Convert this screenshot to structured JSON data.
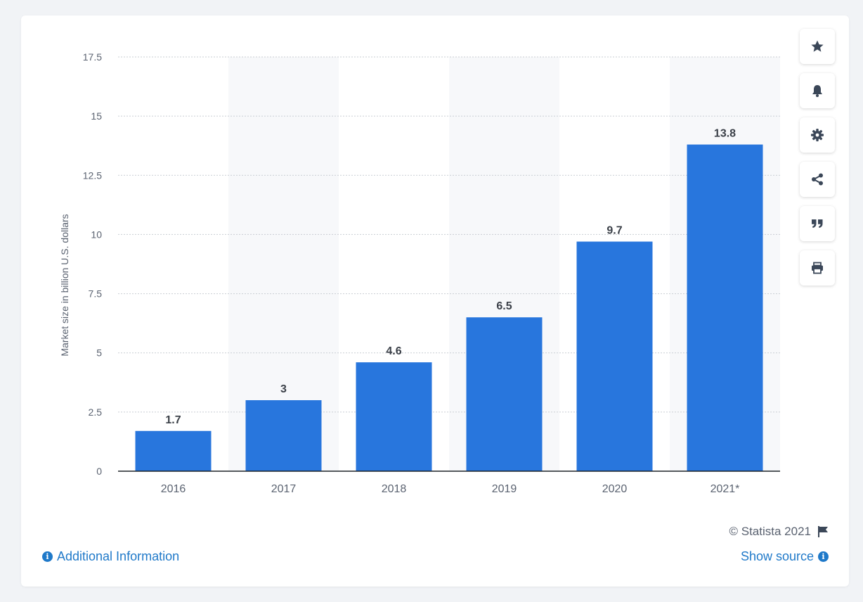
{
  "chart_data": {
    "type": "bar",
    "categories": [
      "2016",
      "2017",
      "2018",
      "2019",
      "2020",
      "2021*"
    ],
    "values": [
      1.7,
      3,
      4.6,
      6.5,
      9.7,
      13.8
    ],
    "value_labels": [
      "1.7",
      "3",
      "4.6",
      "6.5",
      "9.7",
      "13.8"
    ],
    "ylabel": "Market size in billion U.S. dollars",
    "ylim": [
      0,
      17.5
    ],
    "yticks": [
      0,
      2.5,
      5,
      7.5,
      10,
      12.5,
      15,
      17.5
    ],
    "ytick_labels": [
      "0",
      "2.5",
      "5",
      "7.5",
      "10",
      "12.5",
      "15",
      "17.5"
    ],
    "grid": true,
    "bar_color": "#2876dd",
    "alt_band_color": "#f7f8fa"
  },
  "toolbar": {
    "icons": [
      "star-icon",
      "bell-icon",
      "gear-icon",
      "share-icon",
      "quote-icon",
      "print-icon"
    ]
  },
  "footer": {
    "copyright": "© Statista 2021",
    "additional_info": "Additional Information",
    "show_source": "Show source"
  },
  "colors": {
    "link": "#1f79c9",
    "icon": "#3b4758"
  }
}
